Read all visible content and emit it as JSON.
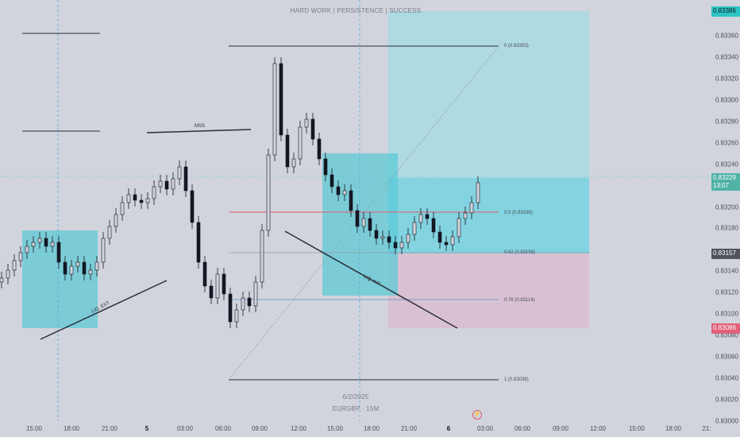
{
  "watermark": {
    "title": "HARD WORK | PERSISTENCE | SUCCESS",
    "date": "6/2/2025",
    "symbol": "EURGBP · 15M"
  },
  "price_axis": {
    "ticks": [
      "0.83380",
      "0.83360",
      "0.83340",
      "0.83320",
      "0.83300",
      "0.83280",
      "0.83260",
      "0.83240",
      "0.83200",
      "0.83180",
      "0.83140",
      "0.83120",
      "0.83100",
      "0.83080",
      "0.83060",
      "0.83040",
      "0.83020",
      "0.83000"
    ]
  },
  "badges": {
    "top": "0.83386",
    "current_price": "0.83229",
    "countdown": "13:07",
    "entry": "0.83157",
    "stop": "0.83086"
  },
  "time_axis": {
    "labels": [
      "15:00",
      "18:00",
      "21:00",
      "5",
      "03:00",
      "06:00",
      "09:00",
      "12:00",
      "15:00",
      "18:00",
      "21:00",
      "6",
      "03:00",
      "06:00",
      "09:00",
      "12:00",
      "15:00",
      "18:00",
      "21:"
    ]
  },
  "fib_levels": [
    {
      "label": "0 (0.83353)"
    },
    {
      "label": "0.5 (0.83196)"
    },
    {
      "label": "0.62 (0.83158)"
    },
    {
      "label": "0.76 (0.83114)"
    },
    {
      "label": "1 (0.83038)"
    }
  ],
  "annotations": {
    "mss": "MSS",
    "liq_ext": "LIQ. EXT.",
    "liq_int": "LIQ. INT."
  },
  "colors": {
    "bg": "#d1d4dc",
    "candle": "#131722",
    "teal_zone": "#5ec9d6",
    "target_zone": "#7fd3e0",
    "stop_zone": "#e3b7cb",
    "mid_line": "#e05c6a",
    "current_badge": "#4fb3a6",
    "entry_badge": "#50535e",
    "stop_badge": "#e0607a",
    "top_badge": "#2ec5c5"
  },
  "chart_data": {
    "type": "candlestick",
    "symbol": "EURGBP",
    "timeframe": "15M",
    "ylim": [
      0.83,
      0.8339
    ],
    "last_price": 0.83229,
    "fib_prices": [
      0.83353,
      0.83196,
      0.83158,
      0.83114,
      0.83038
    ]
  }
}
